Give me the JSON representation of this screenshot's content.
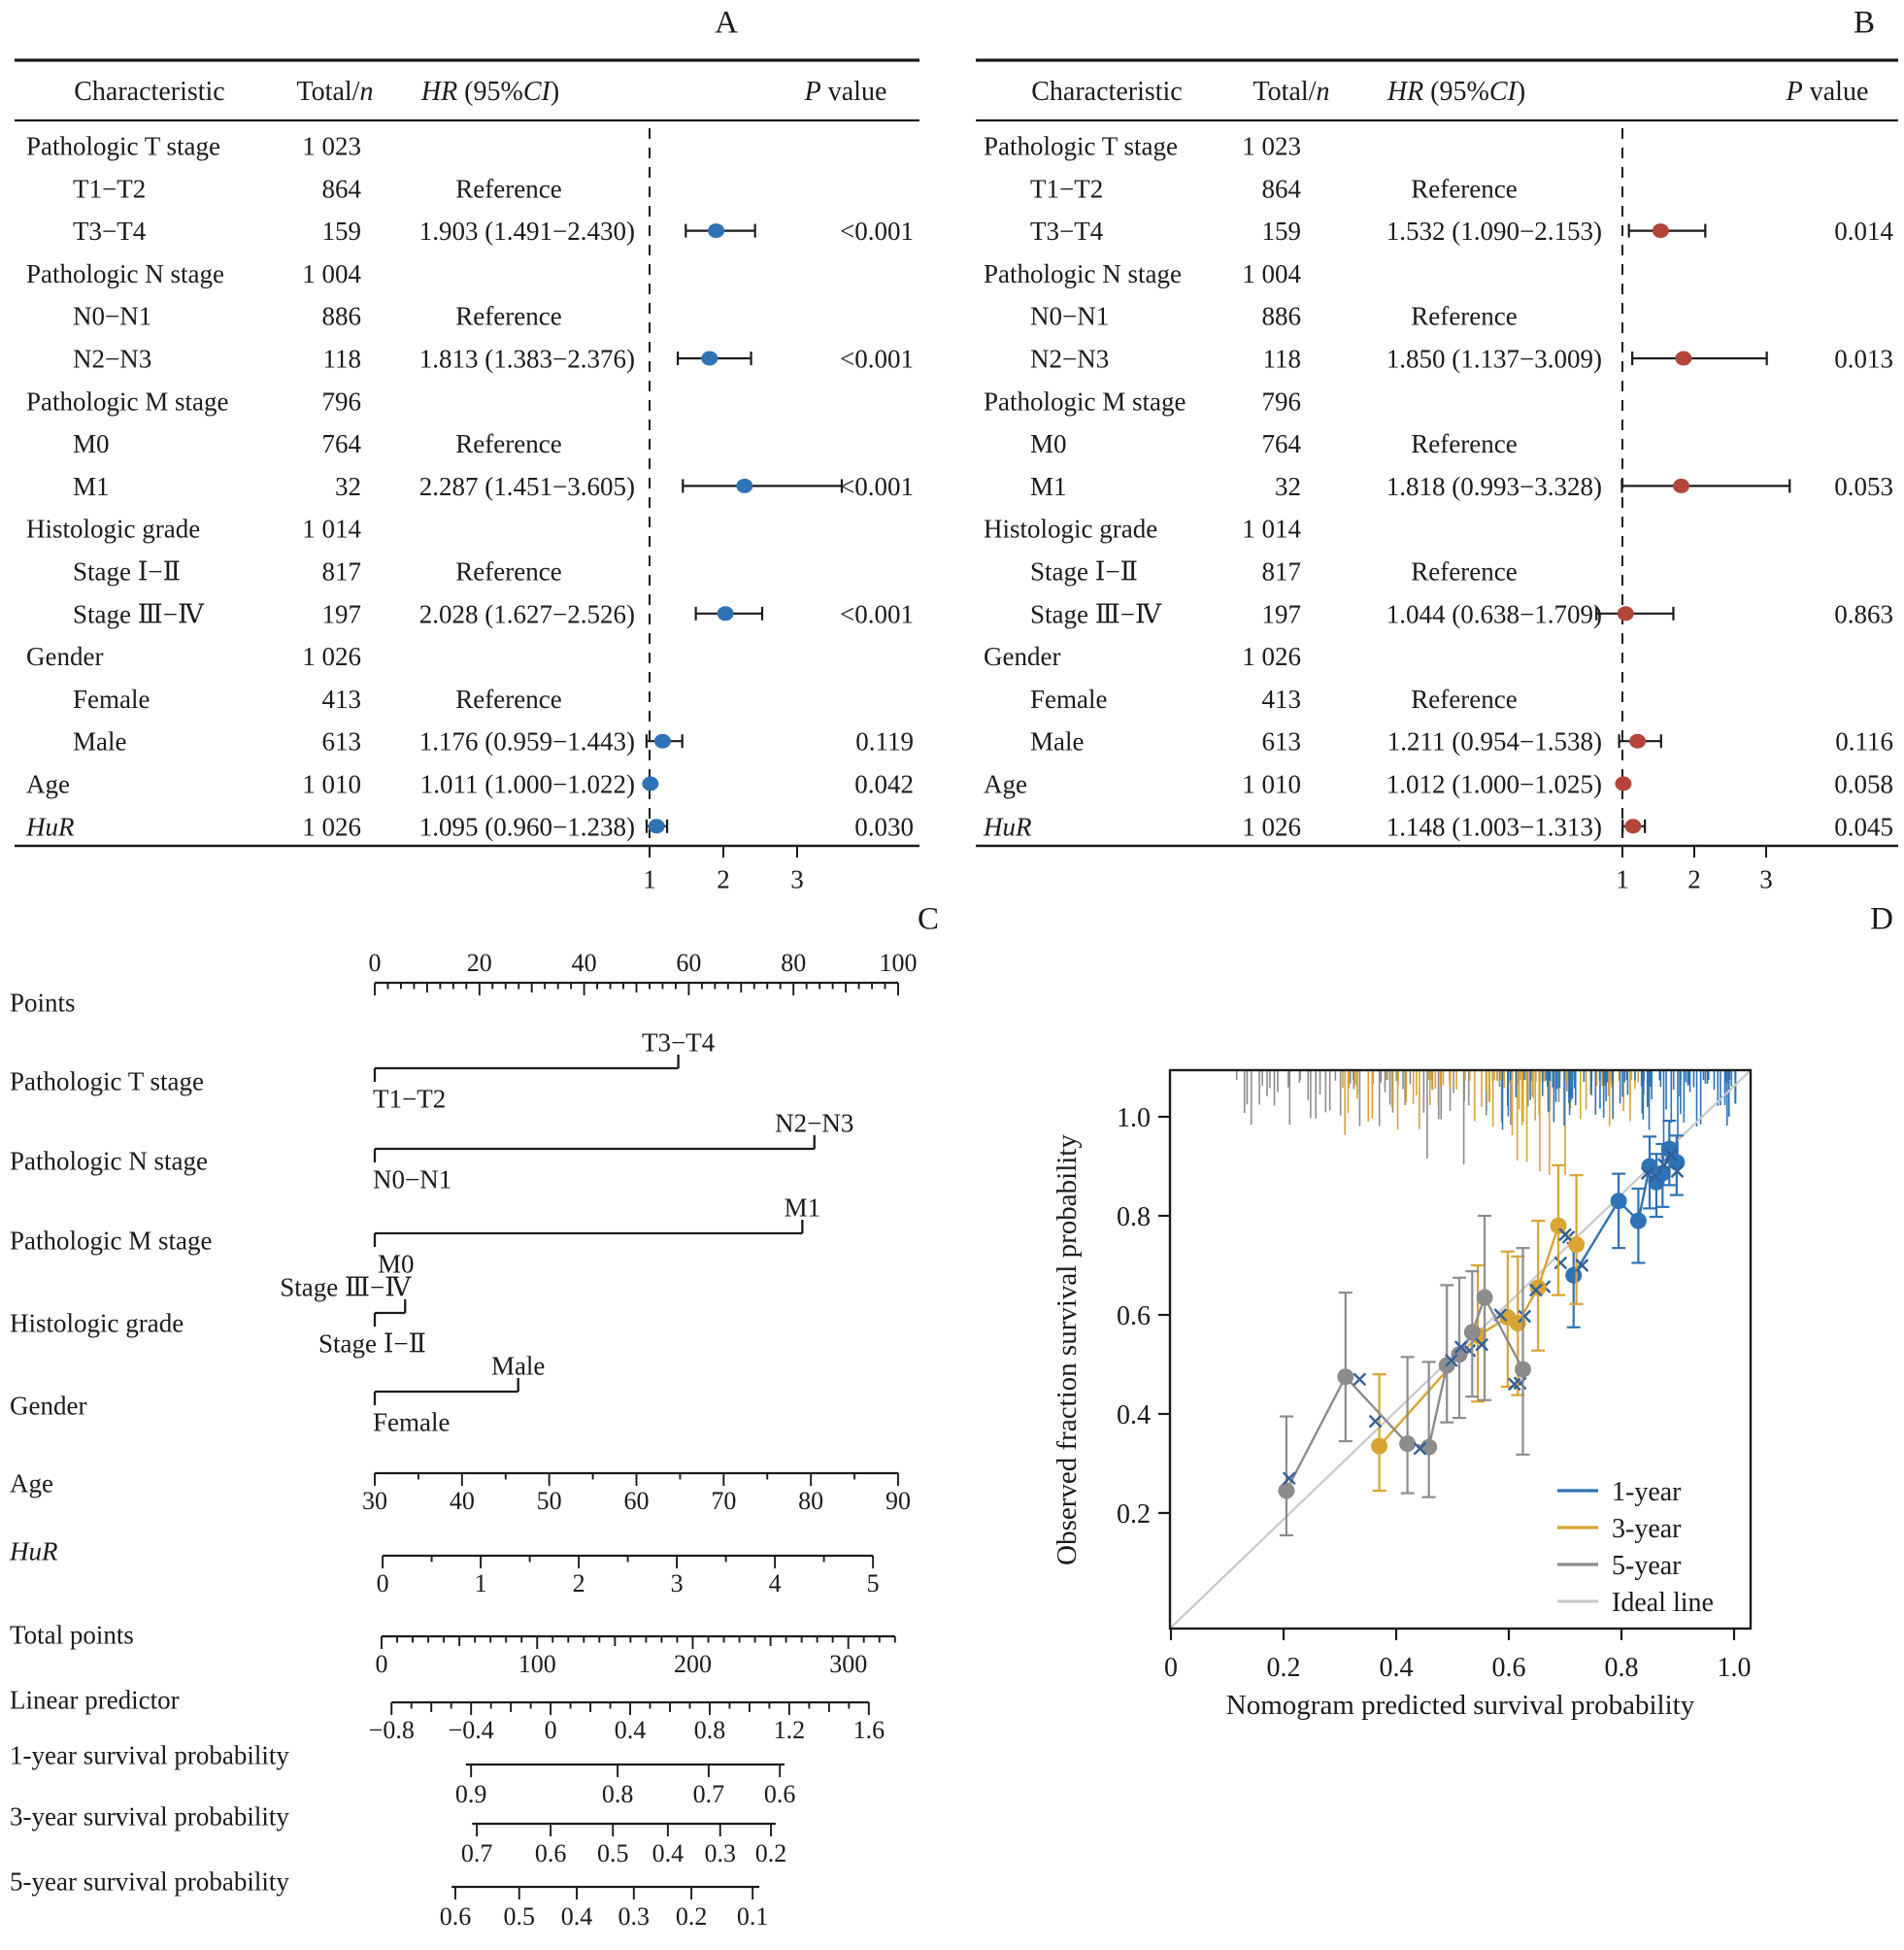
{
  "ui": {
    "panel_labels": {
      "a": "A",
      "b": "B",
      "c": "C",
      "d": "D"
    }
  },
  "chart_data": [
    {
      "type": "table",
      "panel": "A",
      "title": "Univariate forest plot",
      "accent": "#2e73b5",
      "headers": {
        "characteristic": "Characteristic",
        "total_prefix": "Total/",
        "total_n": "n",
        "hr_italic": "HR",
        "hr_mid": " (95%",
        "ci_italic": "CI",
        "hr_close": ")",
        "p_italic": "P",
        "p_rest": " value"
      },
      "reference_text": "Reference",
      "x_ticks": [
        "1",
        "2",
        "3"
      ],
      "rows": [
        {
          "label": "Pathologic T stage",
          "total": "1 023"
        },
        {
          "label": "T1−T2",
          "indent": 1,
          "total": "864",
          "ref": 1
        },
        {
          "label": "T3−T4",
          "indent": 1,
          "total": "159",
          "hr_text": "1.903 (1.491−2.430)",
          "p": "<0.001",
          "hr": 1.903,
          "lo": 1.491,
          "hi": 2.43
        },
        {
          "label": "Pathologic N stage",
          "total": "1 004"
        },
        {
          "label": "N0−N1",
          "indent": 1,
          "total": "886",
          "ref": 1
        },
        {
          "label": "N2−N3",
          "indent": 1,
          "total": "118",
          "hr_text": "1.813 (1.383−2.376)",
          "p": "<0.001",
          "hr": 1.813,
          "lo": 1.383,
          "hi": 2.376
        },
        {
          "label": "Pathologic M stage",
          "total": "796"
        },
        {
          "label": "M0",
          "indent": 1,
          "total": "764",
          "ref": 1
        },
        {
          "label": "M1",
          "indent": 1,
          "total": "32",
          "hr_text": "2.287 (1.451−3.605)",
          "p": "<0.001",
          "hr": 2.287,
          "lo": 1.451,
          "hi": 3.605
        },
        {
          "label": "Histologic grade",
          "total": "1 014"
        },
        {
          "label": "Stage Ⅰ−Ⅱ",
          "indent": 1,
          "total": "817",
          "ref": 1
        },
        {
          "label": "Stage Ⅲ−Ⅳ",
          "indent": 1,
          "total": "197",
          "hr_text": "2.028 (1.627−2.526)",
          "p": "<0.001",
          "hr": 2.028,
          "lo": 1.627,
          "hi": 2.526
        },
        {
          "label": "Gender",
          "total": "1 026"
        },
        {
          "label": "Female",
          "indent": 1,
          "total": "413",
          "ref": 1
        },
        {
          "label": "Male",
          "indent": 1,
          "total": "613",
          "hr_text": "1.176 (0.959−1.443)",
          "p": "0.119",
          "hr": 1.176,
          "lo": 0.959,
          "hi": 1.443
        },
        {
          "label": "Age",
          "total": "1 010",
          "hr_text": "1.011 (1.000−1.022)",
          "p": "0.042",
          "hr": 1.011,
          "lo": 1.0,
          "hi": 1.022
        },
        {
          "label": "HuR",
          "italic": 1,
          "total": "1 026",
          "hr_text": "1.095 (0.960−1.238)",
          "p": "0.030",
          "hr": 1.095,
          "lo": 0.96,
          "hi": 1.238
        }
      ]
    },
    {
      "type": "table",
      "panel": "B",
      "title": "Multivariate forest plot",
      "accent": "#b5443a",
      "headers": {
        "characteristic": "Characteristic",
        "total_prefix": "Total/",
        "total_n": "n",
        "hr_italic": "HR",
        "hr_mid": " (95%",
        "ci_italic": "CI",
        "hr_close": ")",
        "p_italic": "P",
        "p_rest": " value"
      },
      "reference_text": "Reference",
      "x_ticks": [
        "1",
        "2",
        "3"
      ],
      "rows": [
        {
          "label": "Pathologic T stage",
          "total": "1 023"
        },
        {
          "label": "T1−T2",
          "indent": 1,
          "total": "864",
          "ref": 1
        },
        {
          "label": "T3−T4",
          "indent": 1,
          "total": "159",
          "hr_text": "1.532 (1.090−2.153)",
          "p": "0.014",
          "hr": 1.532,
          "lo": 1.09,
          "hi": 2.153
        },
        {
          "label": "Pathologic N stage",
          "total": "1 004"
        },
        {
          "label": "N0−N1",
          "indent": 1,
          "total": "886",
          "ref": 1
        },
        {
          "label": "N2−N3",
          "indent": 1,
          "total": "118",
          "hr_text": "1.850 (1.137−3.009)",
          "p": "0.013",
          "hr": 1.85,
          "lo": 1.137,
          "hi": 3.009
        },
        {
          "label": "Pathologic M stage",
          "total": "796"
        },
        {
          "label": "M0",
          "indent": 1,
          "total": "764",
          "ref": 1
        },
        {
          "label": "M1",
          "indent": 1,
          "total": "32",
          "hr_text": "1.818 (0.993−3.328)",
          "p": "0.053",
          "hr": 1.818,
          "lo": 0.993,
          "hi": 3.328
        },
        {
          "label": "Histologic grade",
          "total": "1 014"
        },
        {
          "label": "Stage Ⅰ−Ⅱ",
          "indent": 1,
          "total": "817",
          "ref": 1
        },
        {
          "label": "Stage Ⅲ−Ⅳ",
          "indent": 1,
          "total": "197",
          "hr_text": "1.044 (0.638−1.709)",
          "p": "0.863",
          "hr": 1.044,
          "lo": 0.638,
          "hi": 1.709
        },
        {
          "label": "Gender",
          "total": "1 026"
        },
        {
          "label": "Female",
          "indent": 1,
          "total": "413",
          "ref": 1
        },
        {
          "label": "Male",
          "indent": 1,
          "total": "613",
          "hr_text": "1.211 (0.954−1.538)",
          "p": "0.116",
          "hr": 1.211,
          "lo": 0.954,
          "hi": 1.538
        },
        {
          "label": "Age",
          "total": "1 010",
          "hr_text": "1.012 (1.000−1.025)",
          "p": "0.058",
          "hr": 1.012,
          "lo": 1.0,
          "hi": 1.025
        },
        {
          "label": "HuR",
          "italic": 1,
          "total": "1 026",
          "hr_text": "1.148 (1.003−1.313)",
          "p": "0.045",
          "hr": 1.148,
          "lo": 1.003,
          "hi": 1.313
        }
      ]
    },
    {
      "type": "nomogram",
      "panel": "C",
      "scale_x": [
        386,
        925
      ],
      "rows": [
        {
          "label": "Points",
          "kind": "ruler",
          "line_y": 1012,
          "label_y": 1032,
          "labels_above": true,
          "axis": {
            "v0": 0,
            "v1": 100,
            "p0": 0,
            "p1": 100,
            "minor_step": 2.5,
            "mid_step": 10,
            "label_step": 20
          }
        },
        {
          "label": "Pathologic T stage",
          "kind": "options",
          "line_y": 1100,
          "label_y": 1113,
          "options": [
            {
              "label": "T1−T2",
              "p": 0,
              "side": "below",
              "anchor": "start",
              "dx": -2
            },
            {
              "label": "T3−T4",
              "p": 58,
              "side": "above",
              "anchor": "middle",
              "dx": 0
            }
          ]
        },
        {
          "label": "Pathologic N stage",
          "kind": "options",
          "line_y": 1183,
          "label_y": 1195,
          "options": [
            {
              "label": "N0−N1",
              "p": 0,
              "side": "below",
              "anchor": "start",
              "dx": -2
            },
            {
              "label": "N2−N3",
              "p": 84,
              "side": "above",
              "anchor": "middle",
              "dx": 0
            }
          ]
        },
        {
          "label": "Pathologic M stage",
          "kind": "options",
          "line_y": 1270,
          "label_y": 1277,
          "options": [
            {
              "label": "M0",
              "p": 0,
              "side": "below",
              "anchor": "start",
              "dx": 3
            },
            {
              "label": "M1",
              "p": 81.7,
              "side": "above",
              "anchor": "middle",
              "dx": 0
            }
          ]
        },
        {
          "label": "Histologic grade",
          "kind": "options",
          "line_y": 1352,
          "label_y": 1362,
          "options": [
            {
              "label": "Stage Ⅰ−Ⅱ",
              "p": 0,
              "side": "below",
              "anchor": "start",
              "dx": -58
            },
            {
              "label": "Stage Ⅲ−Ⅳ",
              "p": 5.8,
              "side": "above",
              "anchor": "end",
              "dx": 6
            }
          ]
        },
        {
          "label": "Gender",
          "kind": "options",
          "line_y": 1433,
          "label_y": 1447,
          "options": [
            {
              "label": "Female",
              "p": 0,
              "side": "below",
              "anchor": "start",
              "dx": -2
            },
            {
              "label": "Male",
              "p": 27.4,
              "side": "above",
              "anchor": "middle",
              "dx": 0
            }
          ]
        },
        {
          "label": "Age",
          "kind": "ruler",
          "line_y": 1517,
          "label_y": 1527,
          "labels_above": false,
          "axis": {
            "v0": 30,
            "v1": 90,
            "p0": 0,
            "p1": 100,
            "minor_step": 5,
            "label_step": 10
          }
        },
        {
          "label": "HuR",
          "italic": 1,
          "kind": "ruler",
          "line_y": 1602,
          "label_y": 1597,
          "labels_above": false,
          "axis": {
            "v0": 0,
            "v1": 5,
            "p0": 1.5,
            "p1": 95.2,
            "minor_step": 0.5,
            "label_step": 1
          }
        },
        {
          "label": "Total points",
          "kind": "ruler",
          "line_y": 1685,
          "label_y": 1683,
          "labels_above": false,
          "axis": {
            "v0": 0,
            "v1": 330,
            "p0": 1.3,
            "p1": 99.4,
            "minor_step": 10,
            "mid_step": 50,
            "label_step": 100
          }
        },
        {
          "label": "Linear predictor",
          "kind": "ruler",
          "line_y": 1753,
          "label_y": 1750,
          "labels_above": false,
          "axis": {
            "v0": -0.8,
            "v1": 1.6,
            "p0": 3.2,
            "p1": 94.4,
            "minor_step": 0.1,
            "mid_step": 0.2,
            "label_step": 0.4
          }
        },
        {
          "label": "1-year survival probability",
          "kind": "prob",
          "line_y": 1817,
          "label_y": 1807,
          "line": [
            17.4,
            78.3
          ],
          "ticks": [
            [
              18.4,
              "0.9"
            ],
            [
              46.4,
              "0.8"
            ],
            [
              63.8,
              "0.7"
            ],
            [
              77.4,
              "0.6"
            ]
          ]
        },
        {
          "label": "3-year survival probability",
          "kind": "prob",
          "line_y": 1878,
          "label_y": 1870,
          "line": [
            18.6,
            76.6
          ],
          "ticks": [
            [
              19.5,
              "0.7"
            ],
            [
              33.6,
              "0.6"
            ],
            [
              45.5,
              "0.5"
            ],
            [
              56.0,
              "0.4"
            ],
            [
              66.0,
              "0.3"
            ],
            [
              75.7,
              "0.2"
            ]
          ]
        },
        {
          "label": "5-year survival probability",
          "kind": "prob",
          "line_y": 1943,
          "label_y": 1937,
          "line": [
            14.7,
            73.5
          ],
          "ticks": [
            [
              15.4,
              "0.6"
            ],
            [
              27.6,
              "0.5"
            ],
            [
              38.6,
              "0.4"
            ],
            [
              49.5,
              "0.3"
            ],
            [
              60.5,
              "0.2"
            ],
            [
              72.2,
              "0.1"
            ]
          ]
        }
      ]
    },
    {
      "type": "scatter",
      "panel": "D",
      "title": "Calibration plot",
      "xlabel": "Nomogram predicted survival probability",
      "ylabel": "Observed fraction survival probability",
      "xlim": [
        0,
        1.03
      ],
      "ylim": [
        -0.03,
        1.09
      ],
      "x_tick_values": [
        0,
        0.2,
        0.4,
        0.6,
        0.8,
        1.0
      ],
      "x_tick_labels": [
        "0",
        "0.2",
        "0.4",
        "0.6",
        "0.8",
        "1.0"
      ],
      "y_tick_values": [
        0.2,
        0.4,
        0.6,
        0.8,
        1.0
      ],
      "y_tick_labels": [
        "0.2",
        "0.4",
        "0.6",
        "0.8",
        "1.0"
      ],
      "x_mark_color": "#315f9a",
      "ideal_color": "#c9c9c9",
      "legend": [
        {
          "label": "1-year",
          "color": "#2e73b5"
        },
        {
          "label": "3-year",
          "color": "#d9a431"
        },
        {
          "label": "5-year",
          "color": "#8c8c8c"
        },
        {
          "label": "Ideal line",
          "color": "#c9c9c9"
        }
      ],
      "series": [
        {
          "name": "1-year",
          "color": "#2e73b5",
          "points": [
            [
              0.715,
              0.68,
              0.575,
              0.745
            ],
            [
              0.795,
              0.83,
              0.735,
              0.885
            ],
            [
              0.83,
              0.79,
              0.705,
              0.855
            ],
            [
              0.85,
              0.9,
              0.815,
              0.96
            ],
            [
              0.862,
              0.868,
              0.798,
              0.925
            ],
            [
              0.873,
              0.886,
              0.818,
              0.945
            ],
            [
              0.885,
              0.935,
              0.862,
              0.992
            ],
            [
              0.898,
              0.908,
              0.842,
              0.962
            ]
          ],
          "x_marks": [
            [
              0.62,
              0.462
            ],
            [
              0.663,
              0.657
            ],
            [
              0.692,
              0.705
            ],
            [
              0.706,
              0.757
            ],
            [
              0.846,
              0.886
            ],
            [
              0.86,
              0.88
            ],
            [
              0.876,
              0.903
            ],
            [
              0.888,
              0.923
            ],
            [
              0.899,
              0.89
            ]
          ]
        },
        {
          "name": "3-year",
          "color": "#d9a431",
          "points": [
            [
              0.37,
              0.335,
              0.245,
              0.48
            ],
            [
              0.545,
              0.558,
              0.425,
              0.7
            ],
            [
              0.598,
              0.595,
              0.455,
              0.728
            ],
            [
              0.616,
              0.583,
              0.438,
              0.718
            ],
            [
              0.652,
              0.655,
              0.528,
              0.79
            ],
            [
              0.688,
              0.78,
              0.64,
              0.902
            ],
            [
              0.72,
              0.742,
              0.622,
              0.882
            ]
          ],
          "x_marks": [
            [
              0.363,
              0.385
            ],
            [
              0.53,
              0.528
            ],
            [
              0.585,
              0.6
            ],
            [
              0.628,
              0.597
            ],
            [
              0.648,
              0.65
            ],
            [
              0.7,
              0.762
            ],
            [
              0.73,
              0.7
            ]
          ]
        },
        {
          "name": "5-year",
          "color": "#8c8c8c",
          "points": [
            [
              0.205,
              0.245,
              0.155,
              0.395
            ],
            [
              0.31,
              0.475,
              0.345,
              0.645
            ],
            [
              0.42,
              0.34,
              0.24,
              0.515
            ],
            [
              0.458,
              0.333,
              0.232,
              0.505
            ],
            [
              0.49,
              0.498,
              0.383,
              0.66
            ],
            [
              0.512,
              0.52,
              0.392,
              0.675
            ],
            [
              0.535,
              0.565,
              0.435,
              0.688
            ],
            [
              0.557,
              0.635,
              0.428,
              0.8
            ],
            [
              0.625,
              0.49,
              0.318,
              0.735
            ]
          ],
          "x_marks": [
            [
              0.21,
              0.27
            ],
            [
              0.335,
              0.47
            ],
            [
              0.442,
              0.33
            ],
            [
              0.498,
              0.508
            ],
            [
              0.515,
              0.535
            ],
            [
              0.552,
              0.54
            ],
            [
              0.61,
              0.46
            ]
          ]
        }
      ],
      "rug": {
        "seed": 7,
        "series": [
          {
            "color": "#8c8c8c",
            "from": 0.1,
            "to": 0.72,
            "count": 70,
            "max_len": 48,
            "bias": 1.0,
            "long_at": [
              0.455,
              0.52
            ]
          },
          {
            "color": "#d9a431",
            "from": 0.3,
            "to": 0.86,
            "count": 82,
            "max_len": 58,
            "bias": 0.85,
            "long_at": [
              0.615,
              0.632,
              0.655,
              0.672,
              0.7
            ]
          },
          {
            "color": "#2e73b5",
            "from": 0.55,
            "to": 1.003,
            "count": 95,
            "max_len": 52,
            "bias": 0.62,
            "long_at": [
              0.875,
              0.9
            ]
          }
        ]
      }
    }
  ]
}
